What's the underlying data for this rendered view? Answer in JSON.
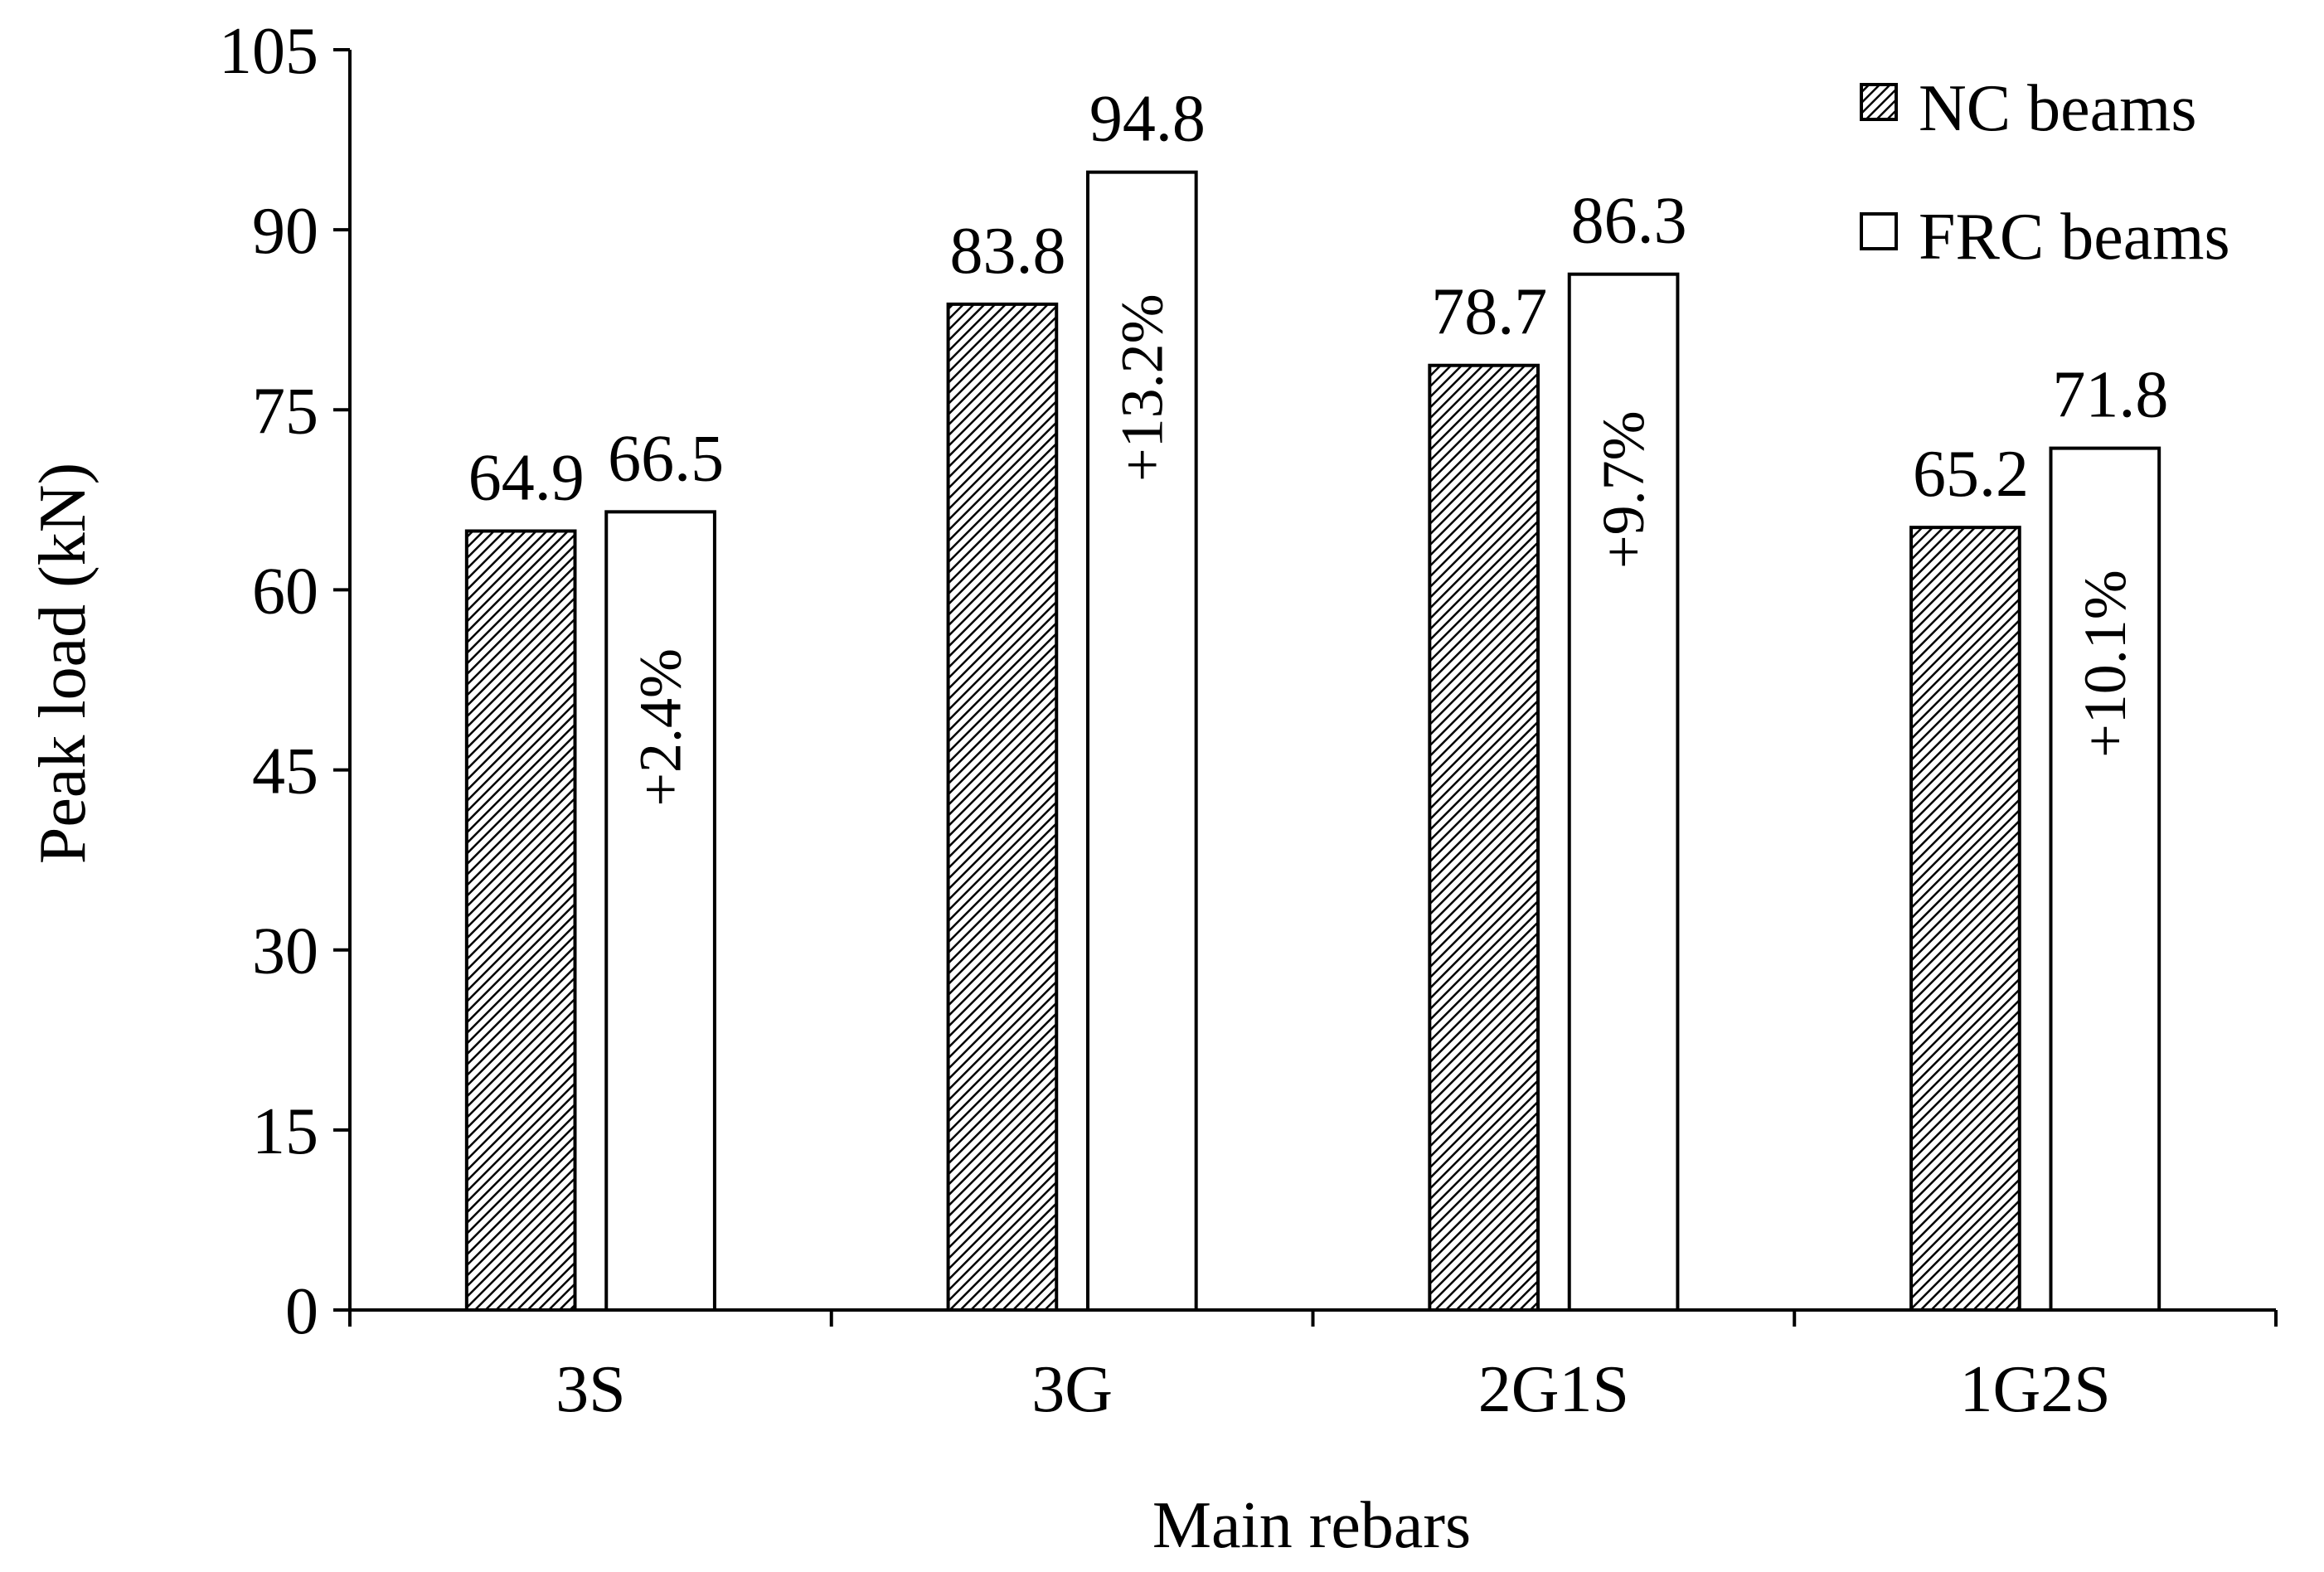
{
  "chart_data": {
    "type": "bar",
    "title": "",
    "xlabel": "Main rebars",
    "ylabel": "Peak load (kN)",
    "ylim": [
      0,
      105
    ],
    "yticks": [
      "0",
      "15",
      "30",
      "45",
      "60",
      "75",
      "90",
      "105"
    ],
    "categories": [
      "3S",
      "3G",
      "2G1S",
      "1G2S"
    ],
    "series": [
      {
        "name": "NC beams",
        "values": [
          64.9,
          83.8,
          78.7,
          65.2
        ],
        "labels": [
          "64.9",
          "83.8",
          "78.7",
          "65.2"
        ],
        "fill": "hatched"
      },
      {
        "name": "FRC beams",
        "values": [
          66.5,
          94.8,
          86.3,
          71.8
        ],
        "labels": [
          "66.5",
          "94.8",
          "86.3",
          "71.8"
        ],
        "fill": "#ffffff"
      }
    ],
    "annotations": [
      "+2.4%",
      "+13.2%",
      "+9.7%",
      "+10.1%"
    ],
    "legend_position": "top-right",
    "grid": false
  }
}
